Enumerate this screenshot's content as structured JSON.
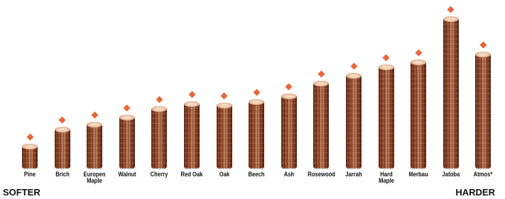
{
  "chart_data": {
    "type": "bar",
    "categories": [
      "Pine",
      "Brich",
      "Europen Maple",
      "Walnut",
      "Cherry",
      "Red Oak",
      "Oak",
      "Beech",
      "Ash",
      "Rosewood",
      "Jarrah",
      "Hard Maple",
      "Merbau",
      "Jatoba",
      "Atmos*"
    ],
    "values": [
      31,
      55,
      63,
      73,
      85,
      92,
      90,
      95,
      103,
      121,
      132,
      144,
      151,
      213,
      162
    ],
    "ylim": [
      0,
      240
    ],
    "left_label": "SOFTER",
    "right_label": "HARDER"
  }
}
